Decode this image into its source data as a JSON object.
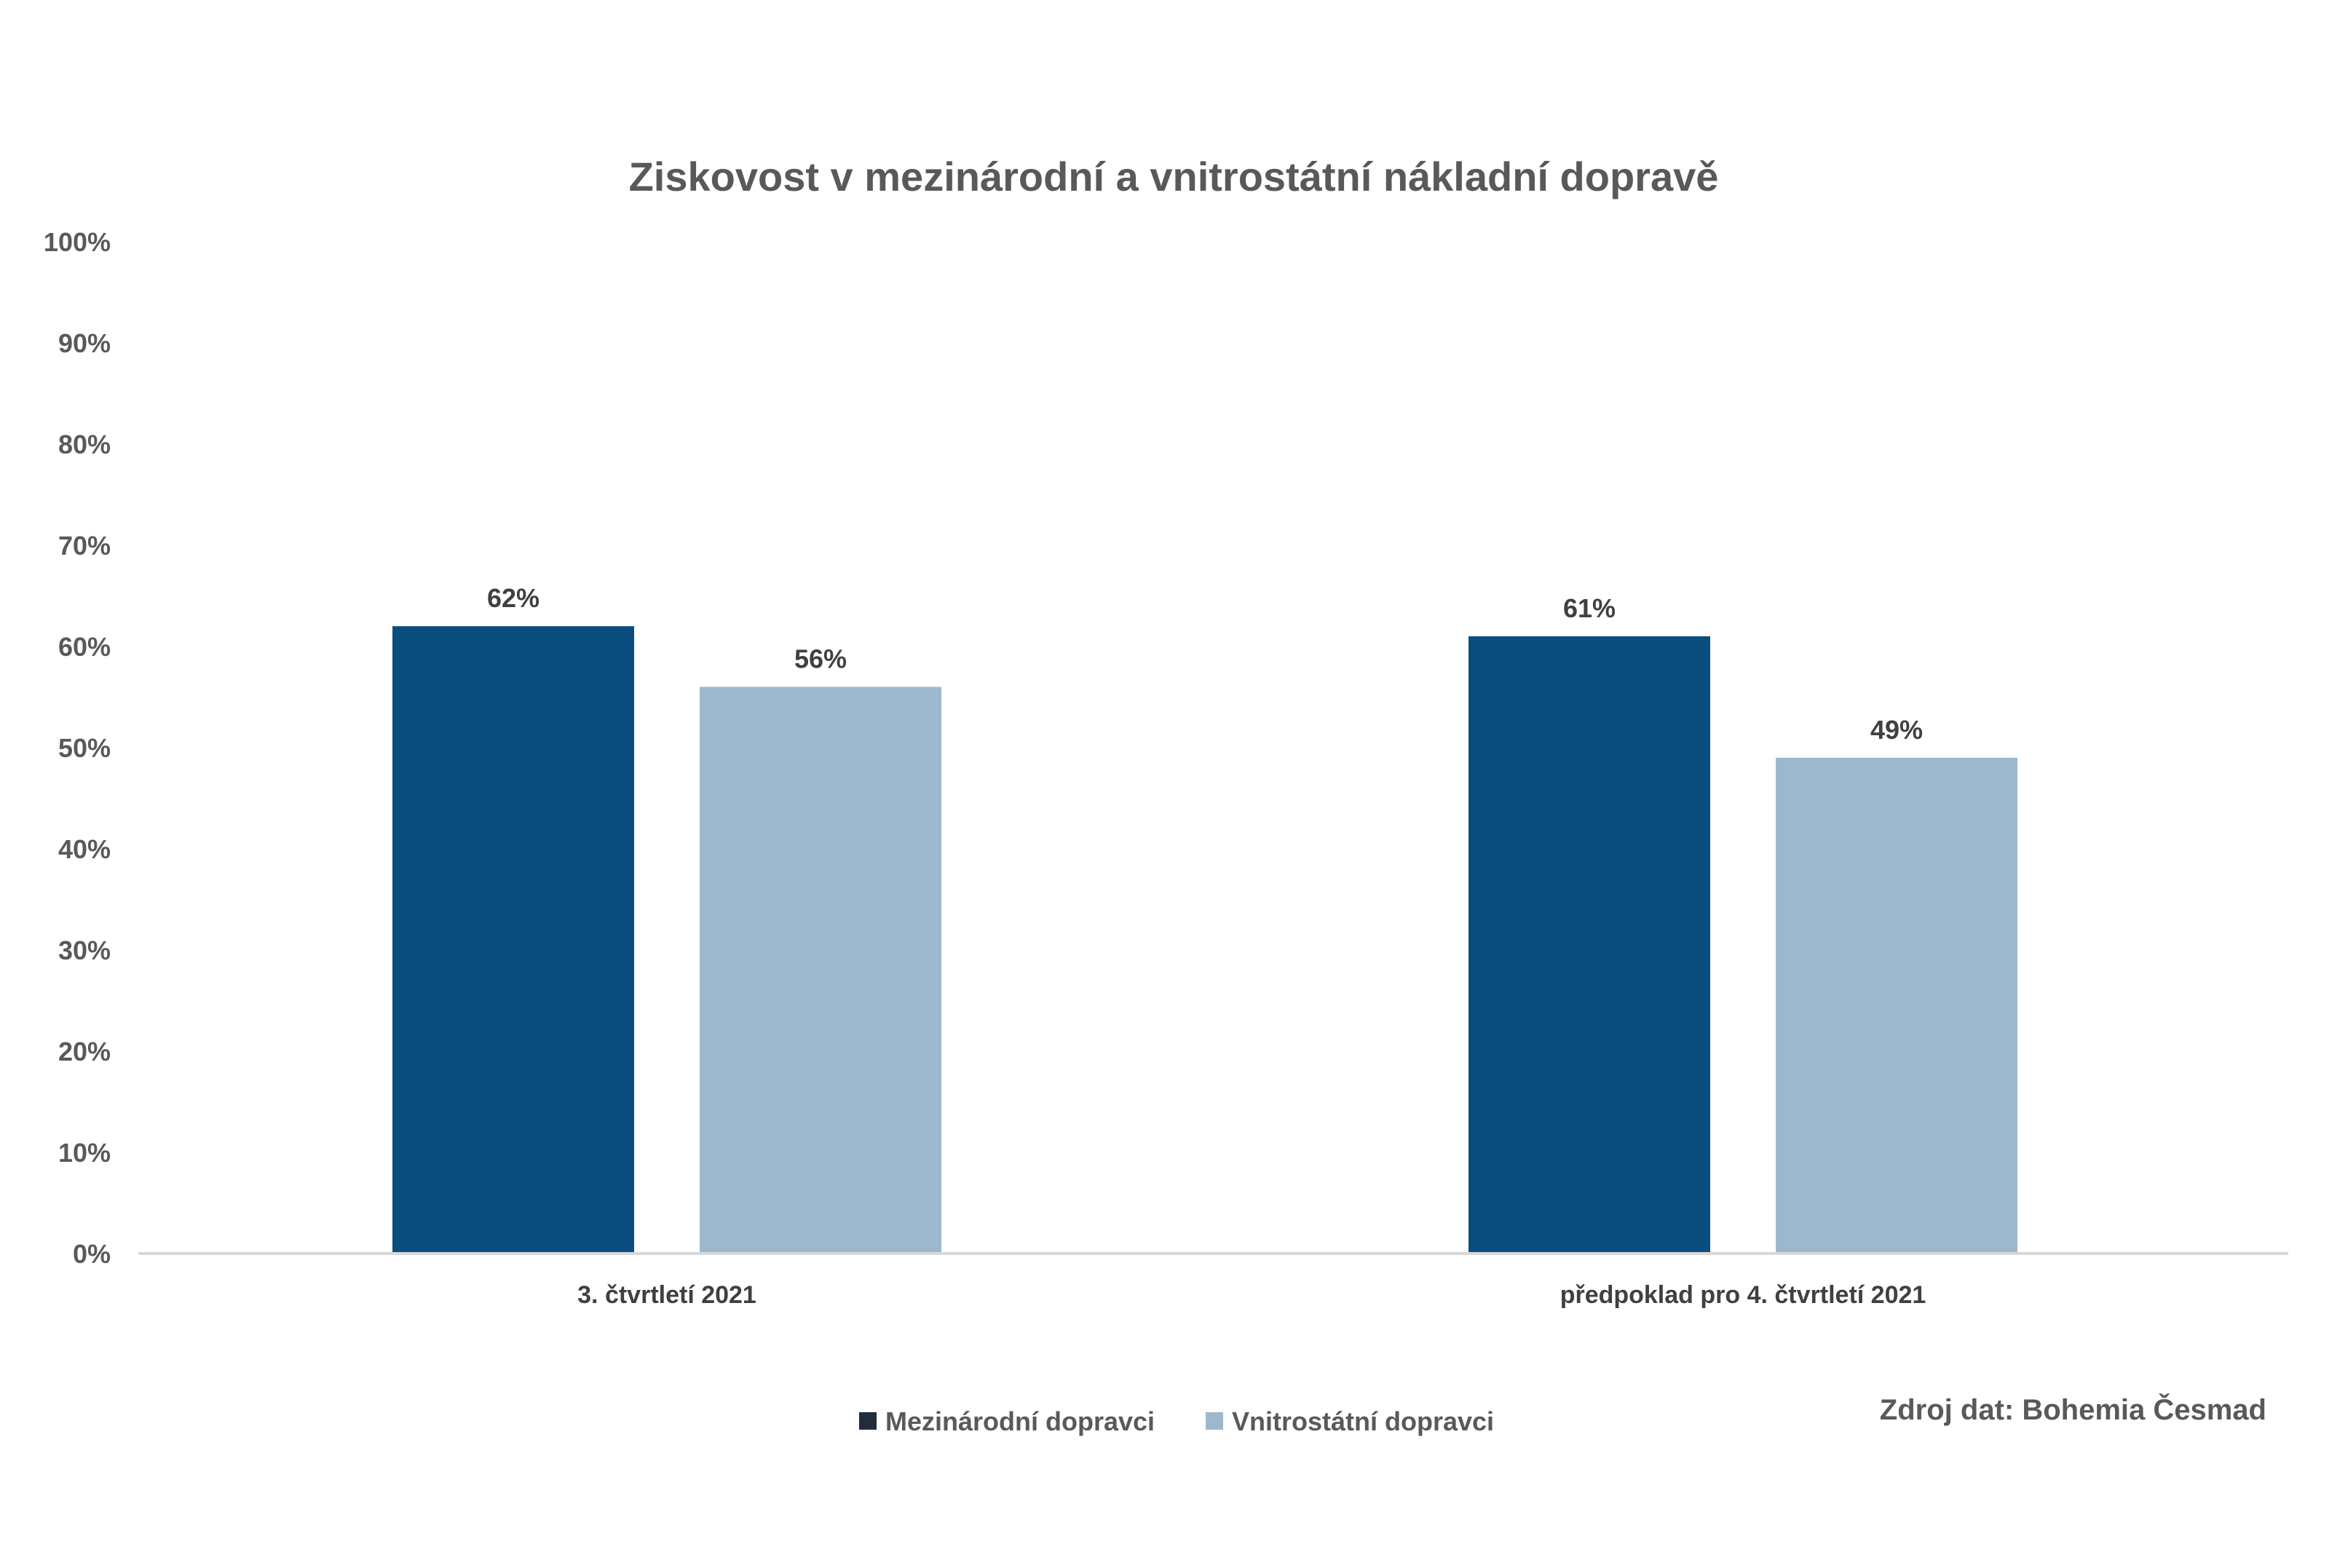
{
  "chart_data": {
    "type": "bar",
    "title": "Ziskovost v mezinárodní a vnitrostátní nákladní dopravě",
    "categories": [
      "3. čtvrtletí 2021",
      "předpoklad pro 4. čtvrtletí 2021"
    ],
    "series": [
      {
        "name": "Mezinárodní dopravci",
        "values": [
          62,
          61
        ],
        "color": "#0a4e80",
        "legend_color": "#1f2d3d"
      },
      {
        "name": "Vnitrostátní dopravci",
        "values": [
          56,
          49
        ],
        "color": "#9db8cd",
        "legend_color": "#9db8cd"
      }
    ],
    "data_labels": [
      [
        "62%",
        "61%"
      ],
      [
        "56%",
        "49%"
      ]
    ],
    "ylim": [
      0,
      100
    ],
    "yticks": [
      "0%",
      "10%",
      "20%",
      "30%",
      "40%",
      "50%",
      "60%",
      "70%",
      "80%",
      "90%",
      "100%"
    ],
    "xlabel": "",
    "ylabel": "",
    "grid": false,
    "legend_position": "bottom"
  },
  "source_note": "Zdroj dat: Bohemia Česmad"
}
